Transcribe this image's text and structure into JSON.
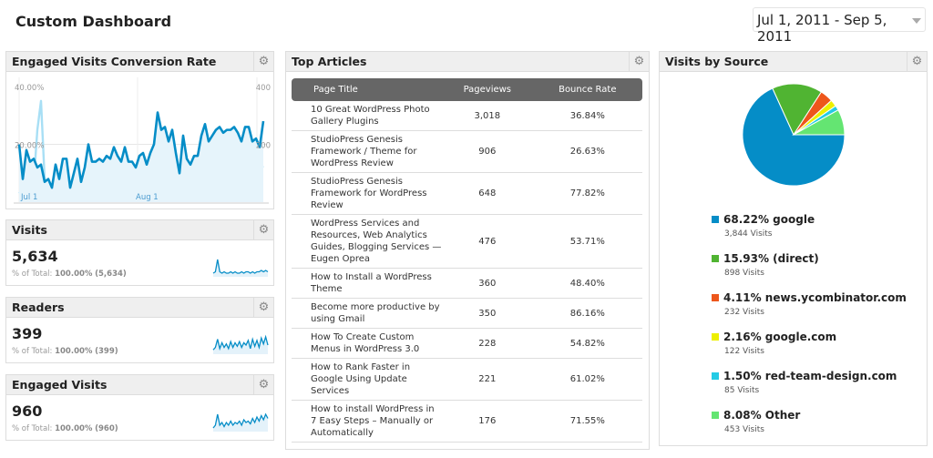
{
  "page_title": "Custom Dashboard",
  "date_range": "Jul 1, 2011 - Sep 5, 2011",
  "conversion": {
    "title": "Engaged Visits Conversion Rate",
    "chart_data": {
      "type": "line",
      "x_labels": [
        "Jul 1",
        "Aug 1"
      ],
      "y_left_ticks": [
        "40.00%",
        "20.00%"
      ],
      "y_right_ticks": [
        "400",
        "200"
      ],
      "ylim_left": [
        0,
        40
      ],
      "ylim_right": [
        0,
        400
      ],
      "series": [
        {
          "axis": "left",
          "color": "#058dc7",
          "values": [
            20,
            8,
            18,
            14,
            15,
            12,
            13,
            7,
            8,
            5,
            13,
            8,
            15,
            15,
            5,
            10,
            15,
            7,
            12,
            20,
            14,
            14,
            15,
            14,
            16,
            15,
            19,
            16,
            14,
            19,
            14,
            14,
            12,
            16,
            17,
            13,
            17,
            20,
            31,
            25,
            26,
            21,
            25,
            17,
            10,
            23,
            15,
            13,
            16,
            16,
            23,
            27,
            21,
            23,
            25,
            26,
            24,
            25,
            25,
            26,
            24,
            21,
            26,
            26,
            21,
            22,
            19,
            28
          ]
        },
        {
          "axis": "right",
          "color": "#a8dff5",
          "values": [
            30,
            40,
            50,
            60,
            70,
            250,
            350,
            80,
            50,
            60,
            100,
            90,
            70,
            60,
            50,
            50,
            60,
            70,
            90,
            90,
            90,
            90,
            60,
            50,
            80,
            90,
            90,
            80,
            90,
            90,
            80,
            60,
            40,
            80,
            100,
            80,
            100,
            90,
            80,
            80,
            70,
            90,
            90,
            90,
            90,
            60,
            50,
            60,
            80,
            110,
            100,
            120,
            80,
            90,
            100,
            110,
            120,
            100,
            90,
            110,
            120,
            130,
            110,
            130,
            100,
            90,
            130,
            120
          ]
        }
      ]
    }
  },
  "metrics": [
    {
      "title": "Visits",
      "value": "5,634",
      "pct_label": "% of Total:",
      "pct": "100.00%",
      "total": "(5,634)",
      "spark": [
        2,
        3,
        12,
        3,
        2,
        3,
        2,
        2,
        3,
        2,
        3,
        2,
        2,
        3,
        2,
        3,
        3,
        2,
        3,
        2,
        3,
        3,
        4,
        3,
        4,
        3
      ]
    },
    {
      "title": "Readers",
      "value": "399",
      "pct_label": "% of Total:",
      "pct": "100.00%",
      "total": "(399)",
      "spark": [
        3,
        5,
        12,
        4,
        9,
        5,
        8,
        4,
        10,
        5,
        9,
        6,
        10,
        5,
        9,
        7,
        11,
        4,
        12,
        6,
        11,
        5,
        13,
        8,
        14,
        7
      ]
    },
    {
      "title": "Engaged Visits",
      "value": "960",
      "pct_label": "% of Total:",
      "pct": "100.00%",
      "total": "(960)",
      "spark": [
        2,
        4,
        12,
        4,
        6,
        3,
        6,
        4,
        7,
        4,
        6,
        5,
        7,
        4,
        8,
        6,
        7,
        5,
        9,
        6,
        10,
        7,
        11,
        8,
        12,
        9
      ]
    }
  ],
  "articles": {
    "title": "Top Articles",
    "columns": [
      "Page Title",
      "Pageviews",
      "Bounce Rate"
    ],
    "rows": [
      [
        "10 Great WordPress Photo Gallery Plugins",
        "3,018",
        "36.84%"
      ],
      [
        "StudioPress Genesis Framework / Theme for WordPress Review",
        "906",
        "26.63%"
      ],
      [
        "StudioPress Genesis Framework for WordPress Review",
        "648",
        "77.82%"
      ],
      [
        "WordPress Services and Resources, Web Analytics Guides, Blogging Services — Eugen Oprea",
        "476",
        "53.71%"
      ],
      [
        "How to Install a WordPress Theme",
        "360",
        "48.40%"
      ],
      [
        "Become more productive by using Gmail",
        "350",
        "86.16%"
      ],
      [
        "How To Create Custom Menus in WordPress 3.0",
        "228",
        "54.82%"
      ],
      [
        "How to Rank Faster in Google Using Update Services",
        "221",
        "61.02%"
      ],
      [
        "How to install WordPress in 7 Easy Steps – Manually or Automatically",
        "176",
        "71.55%"
      ]
    ]
  },
  "sources": {
    "title": "Visits by Source",
    "chart_data": {
      "type": "pie",
      "start": "east",
      "direction": "clockwise",
      "slices": [
        {
          "label": "68.22% google",
          "pct": 68.22,
          "visits": "3,844 Visits",
          "color": "#058dc7"
        },
        {
          "label": "15.93% (direct)",
          "pct": 15.93,
          "visits": "898 Visits",
          "color": "#50b432"
        },
        {
          "label": "4.11% news.ycombinator.com",
          "pct": 4.11,
          "visits": "232 Visits",
          "color": "#ed561b"
        },
        {
          "label": "2.16% google.com",
          "pct": 2.16,
          "visits": "122 Visits",
          "color": "#edef00"
        },
        {
          "label": "1.50% red-team-design.com",
          "pct": 1.5,
          "visits": "85 Visits",
          "color": "#24cbe5"
        },
        {
          "label": "8.08% Other",
          "pct": 8.08,
          "visits": "453 Visits",
          "color": "#64e572"
        }
      ]
    }
  },
  "icons": {
    "gear": "gear-icon"
  }
}
